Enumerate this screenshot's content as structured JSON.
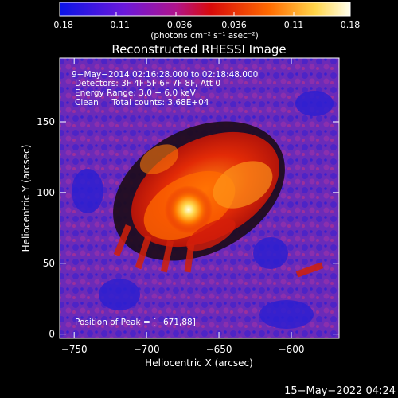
{
  "chart_data": {
    "type": "heatmap",
    "title": "Reconstructed RHESSI Image",
    "xlabel": "Heliocentric X (arcsec)",
    "ylabel": "Heliocentric Y (arcsec)",
    "xlim": [
      -760,
      -567
    ],
    "ylim": [
      -3,
      195
    ],
    "x_ticks": [
      -750,
      -700,
      -650,
      -600
    ],
    "x_tick_labels": [
      "−750",
      "−700",
      "−650",
      "−600"
    ],
    "y_ticks": [
      0,
      50,
      100,
      150
    ],
    "y_tick_labels": [
      "0",
      "50",
      "100",
      "150"
    ],
    "colorbar": {
      "min": -0.18,
      "max": 0.18,
      "ticks": [
        -0.18,
        -0.11,
        -0.036,
        0.036,
        0.11,
        0.18
      ],
      "tick_labels": [
        "−0.18",
        "−0.11",
        "−0.036",
        "0.036",
        "0.11",
        "0.18"
      ],
      "unit_label": "(photons cm⁻² s⁻¹ asec⁻²)",
      "colors": [
        "#1a14e6",
        "#7a16d6",
        "#b8158a",
        "#d60a0a",
        "#ff6a00",
        "#ffd64a",
        "#ffffe6"
      ]
    },
    "annotations": [
      "9−May−2014 02:16:28.000 to 02:18:48.000",
      "Detectors: 3F 4F 5F 6F 7F 8F, Att 0",
      "Energy Range: 3.0 − 6.0 keV",
      "Clean     Total counts: 3.68E+04"
    ],
    "peak_label": "Position of Peak = [−671,88]",
    "peak": {
      "x": -671,
      "y": 88
    },
    "footer_date": "15−May−2022 04:24"
  }
}
